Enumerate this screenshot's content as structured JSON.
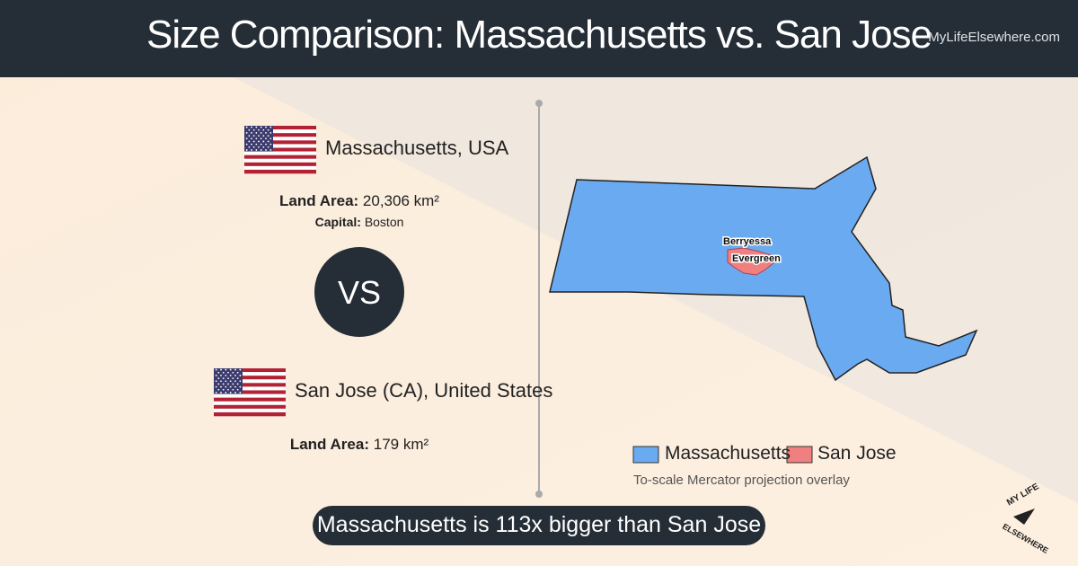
{
  "header": {
    "title": "Size Comparison: Massachusetts vs. San Jose",
    "site": "MyLifeElsewhere.com"
  },
  "place_a": {
    "name": "Massachusetts, USA",
    "area_label": "Land Area:",
    "area_value": "20,306 km²",
    "capital_label": "Capital:",
    "capital_value": "Boston"
  },
  "versus": "VS",
  "place_b": {
    "name": "San Jose (CA), United States",
    "area_label": "Land Area:",
    "area_value": "179 km²"
  },
  "map": {
    "labels": [
      "Berryessa",
      "Evergreen"
    ]
  },
  "legend": {
    "items": [
      "Massachusetts",
      "San Jose"
    ],
    "note": "To-scale Mercator projection overlay"
  },
  "footer": "Massachusetts is 113x bigger than San Jose",
  "logo": {
    "top": "MY LIFE",
    "bottom": "ELSEWHERE"
  }
}
